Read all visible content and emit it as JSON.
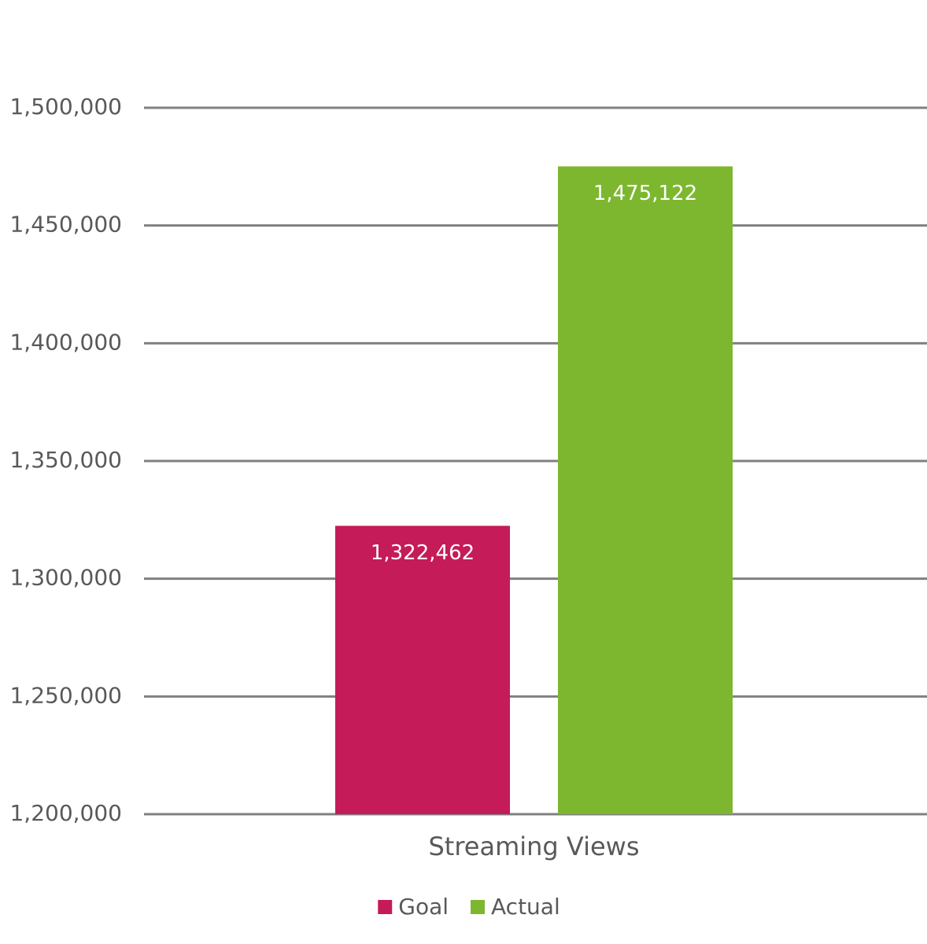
{
  "chart_data": {
    "type": "bar",
    "categories": [
      "Streaming Views"
    ],
    "series": [
      {
        "name": "Goal",
        "color": "#c51b58",
        "values": [
          1322462
        ],
        "value_labels": [
          "1,322,462"
        ]
      },
      {
        "name": "Actual",
        "color": "#7db72f",
        "values": [
          1475122
        ],
        "value_labels": [
          "1,475,122"
        ]
      }
    ],
    "ylim": [
      1200000,
      1500000
    ],
    "yticks": [
      {
        "value": 1200000,
        "label": "1,200,000"
      },
      {
        "value": 1250000,
        "label": "1,250,000"
      },
      {
        "value": 1300000,
        "label": "1,300,000"
      },
      {
        "value": 1350000,
        "label": "1,350,000"
      },
      {
        "value": 1400000,
        "label": "1,400,000"
      },
      {
        "value": 1450000,
        "label": "1,450,000"
      },
      {
        "value": 1500000,
        "label": "1,500,000"
      }
    ],
    "grid": true,
    "legend": "bottom"
  }
}
